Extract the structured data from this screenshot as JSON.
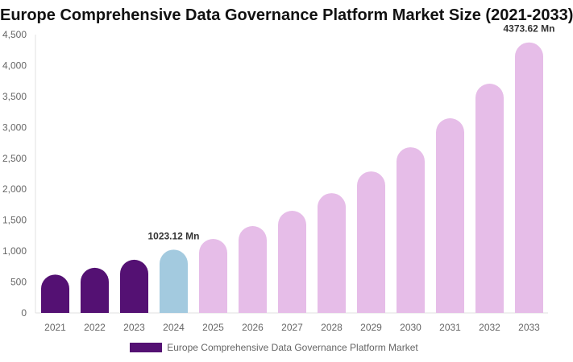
{
  "chart_data": {
    "type": "bar",
    "title": "Europe Comprehensive Data Governance Platform Market Size (2021-2033)",
    "categories": [
      "2021",
      "2022",
      "2023",
      "2024",
      "2025",
      "2026",
      "2027",
      "2028",
      "2029",
      "2030",
      "2031",
      "2032",
      "2033"
    ],
    "series": [
      {
        "name": "Europe Comprehensive Data Governance Platform Market",
        "values": [
          620,
          730,
          860,
          1023.12,
          1196,
          1404,
          1651,
          1937,
          2288,
          2678,
          3147,
          3706,
          4373.62
        ]
      }
    ],
    "bar_colors": [
      "#541173",
      "#541173",
      "#541173",
      "#a3cadf",
      "#e6bde8",
      "#e6bde8",
      "#e6bde8",
      "#e6bde8",
      "#e6bde8",
      "#e6bde8",
      "#e6bde8",
      "#e6bde8",
      "#e6bde8"
    ],
    "data_labels": [
      {
        "category": "2024",
        "text": "1023.12 Mn"
      },
      {
        "category": "2033",
        "text": "4373.62 Mn"
      }
    ],
    "yticks": [
      "0",
      "500",
      "1,000",
      "1,500",
      "2,000",
      "2,500",
      "3,000",
      "3,500",
      "4,000",
      "4,500"
    ],
    "ylim": [
      0,
      4500
    ],
    "xlabel": "",
    "ylabel": "",
    "grid": false,
    "legend_position": "bottom"
  }
}
